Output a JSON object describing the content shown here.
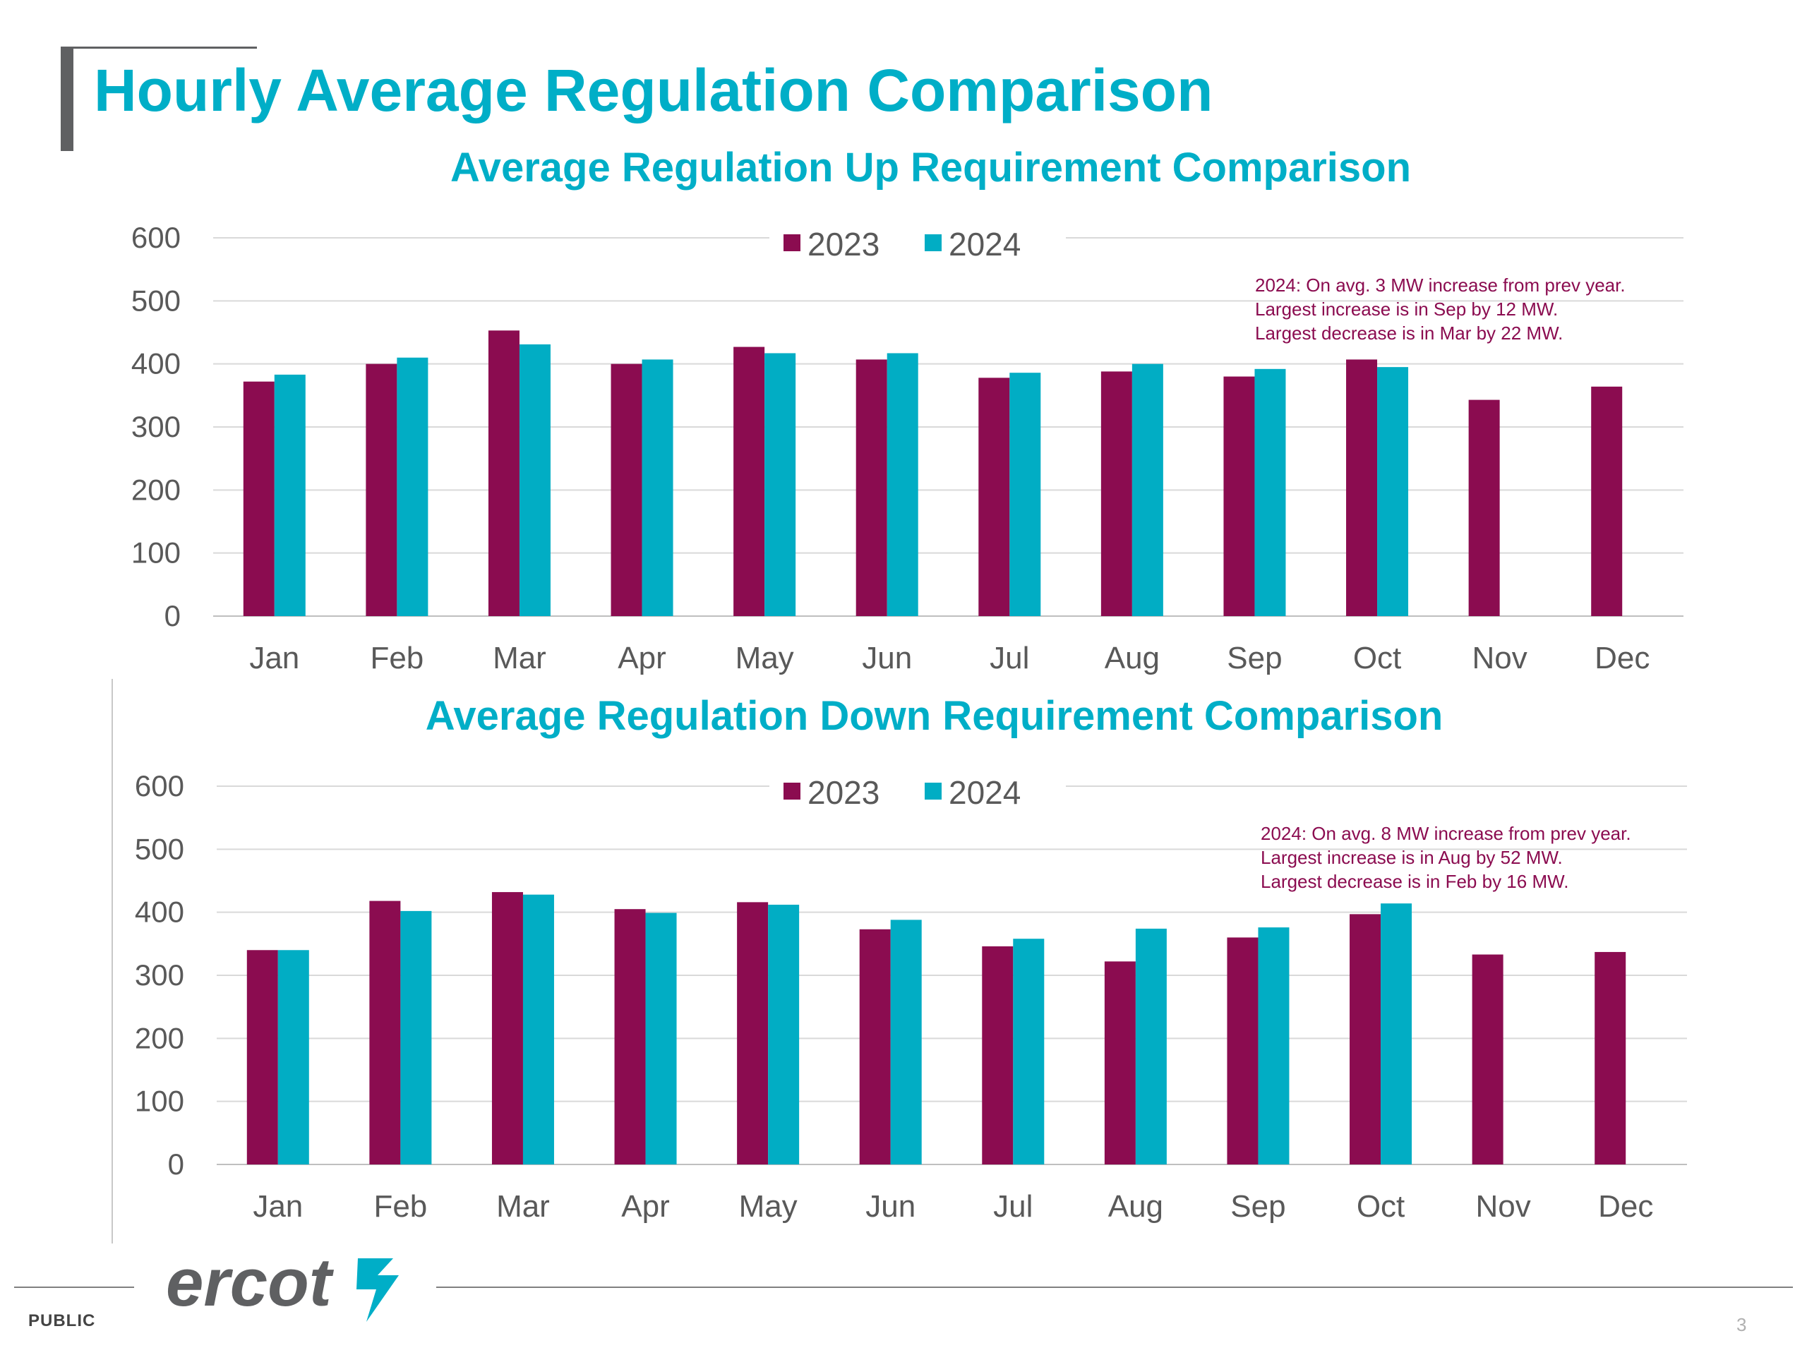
{
  "page": {
    "title": "Hourly Average Regulation Comparison",
    "footer_label": "PUBLIC",
    "page_number": "3",
    "logo_text": "ercot"
  },
  "colors": {
    "series_2023": "#8b0c50",
    "series_2024": "#01adc4",
    "title": "#00aec7",
    "annotation": "#8b0c50",
    "axis_text": "#595959",
    "grid": "#d9d9d9"
  },
  "chart_data": [
    {
      "type": "bar",
      "title": "Average Regulation Up Requirement Comparison",
      "categories": [
        "Jan",
        "Feb",
        "Mar",
        "Apr",
        "May",
        "Jun",
        "Jul",
        "Aug",
        "Sep",
        "Oct",
        "Nov",
        "Dec"
      ],
      "series": [
        {
          "name": "2023",
          "values": [
            372,
            400,
            453,
            400,
            427,
            407,
            378,
            388,
            380,
            407,
            343,
            364
          ]
        },
        {
          "name": "2024",
          "values": [
            383,
            410,
            431,
            407,
            417,
            417,
            386,
            400,
            392,
            395,
            null,
            null
          ]
        }
      ],
      "ylim": [
        0,
        600
      ],
      "yticks": [
        0,
        100,
        200,
        300,
        400,
        500,
        600
      ],
      "grid": true,
      "legend": "top-center",
      "annotation": [
        "2024: On avg. 3 MW increase from prev year.",
        "Largest increase is in Sep by 12 MW.",
        "Largest decrease is in Mar by 22 MW."
      ]
    },
    {
      "type": "bar",
      "title": "Average Regulation Down Requirement Comparison",
      "categories": [
        "Jan",
        "Feb",
        "Mar",
        "Apr",
        "May",
        "Jun",
        "Jul",
        "Aug",
        "Sep",
        "Oct",
        "Nov",
        "Dec"
      ],
      "series": [
        {
          "name": "2023",
          "values": [
            340,
            418,
            432,
            405,
            416,
            373,
            346,
            322,
            360,
            397,
            333,
            337
          ]
        },
        {
          "name": "2024",
          "values": [
            340,
            402,
            428,
            399,
            412,
            388,
            358,
            374,
            376,
            414,
            null,
            null
          ]
        }
      ],
      "ylim": [
        0,
        600
      ],
      "yticks": [
        0,
        100,
        200,
        300,
        400,
        500,
        600
      ],
      "grid": true,
      "legend": "top-center",
      "annotation": [
        "2024: On avg. 8 MW increase from prev year.",
        "Largest increase is in Aug by 52 MW.",
        "Largest decrease is in Feb by 16 MW."
      ]
    }
  ]
}
